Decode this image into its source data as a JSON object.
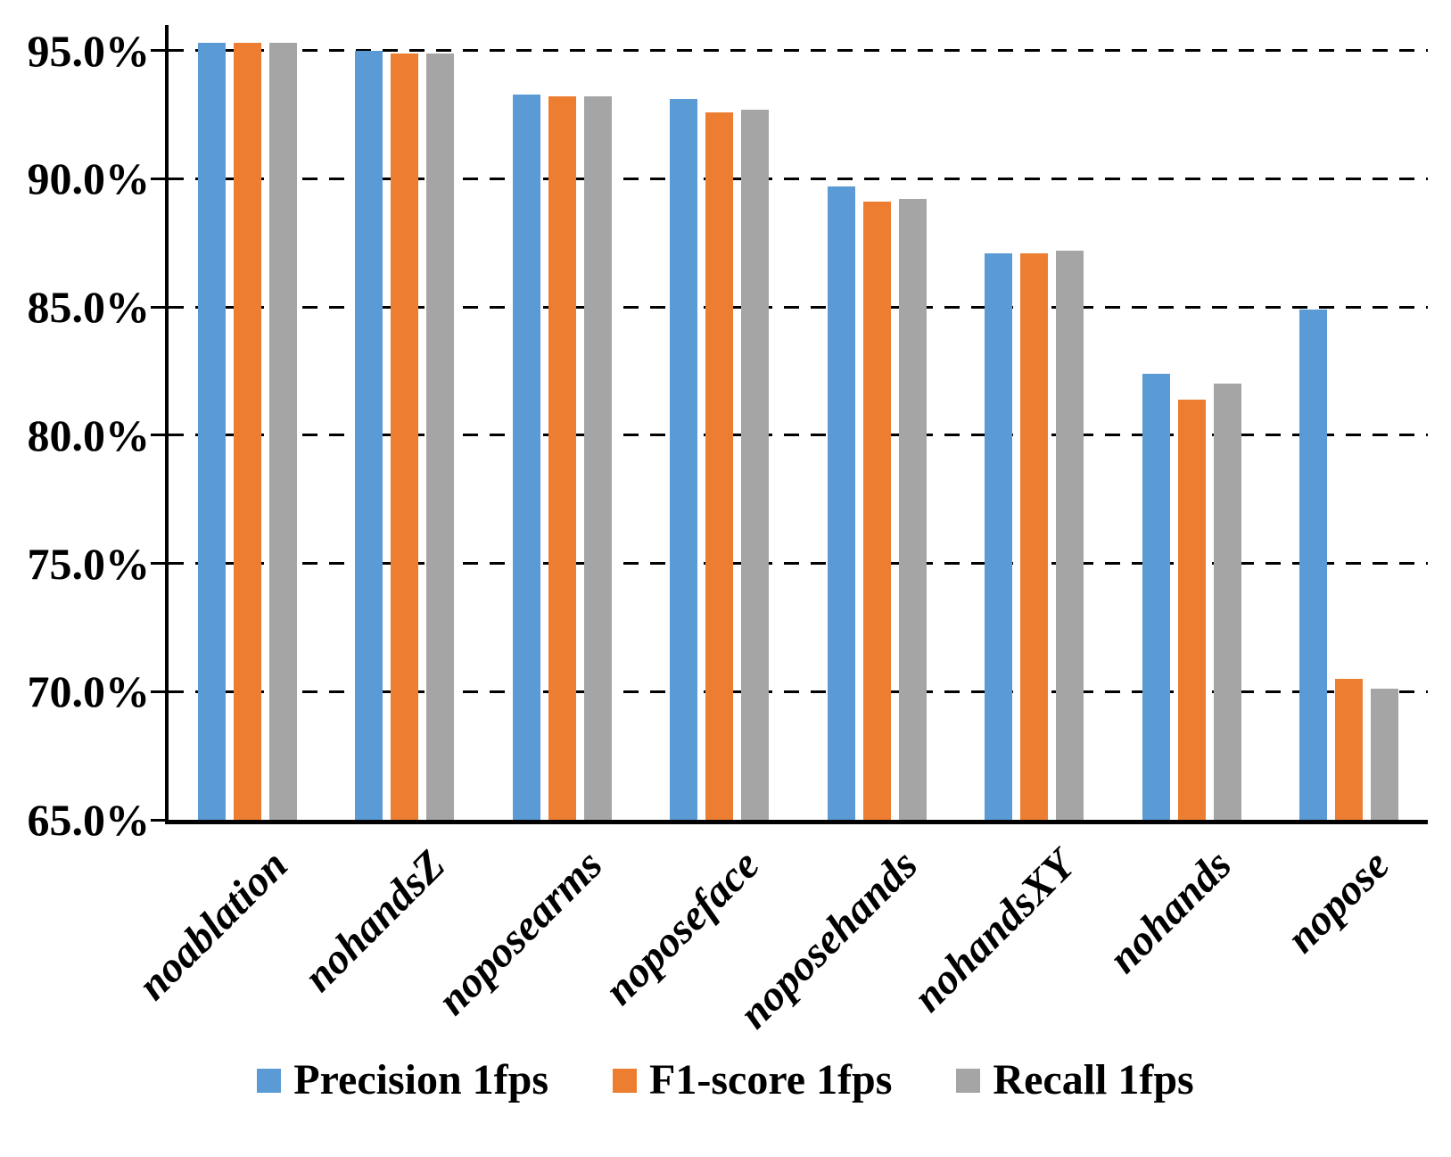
{
  "chart_data": {
    "type": "bar",
    "categories": [
      "noablation",
      "nohandsZ",
      "noposearms",
      "noposeface",
      "noposehands",
      "nohandsXY",
      "nohands",
      "nopose"
    ],
    "series": [
      {
        "name": "Precision 1fps",
        "color": "#5B9BD5",
        "values": [
          95.3,
          95.0,
          93.3,
          93.1,
          89.7,
          87.1,
          82.4,
          84.9
        ]
      },
      {
        "name": "F1-score 1fps",
        "color": "#ED7D31",
        "values": [
          95.3,
          94.9,
          93.2,
          92.6,
          89.1,
          87.1,
          81.4,
          70.5
        ]
      },
      {
        "name": "Recall 1fps",
        "color": "#A5A5A5",
        "values": [
          95.3,
          94.9,
          93.2,
          92.7,
          89.2,
          87.2,
          82.0,
          70.1
        ]
      }
    ],
    "ylim": [
      65,
      96
    ],
    "yticks": [
      95,
      90,
      85,
      80,
      75,
      70,
      65
    ],
    "ytick_labels": [
      "95.0%",
      "90.0%",
      "85.0%",
      "80.0%",
      "75.0%",
      "70.0%",
      "65.0%"
    ],
    "grid": "horizontal-dashed",
    "legend_position": "bottom-center",
    "axis_color": "#000000",
    "background_color": "#FFFFFF"
  }
}
